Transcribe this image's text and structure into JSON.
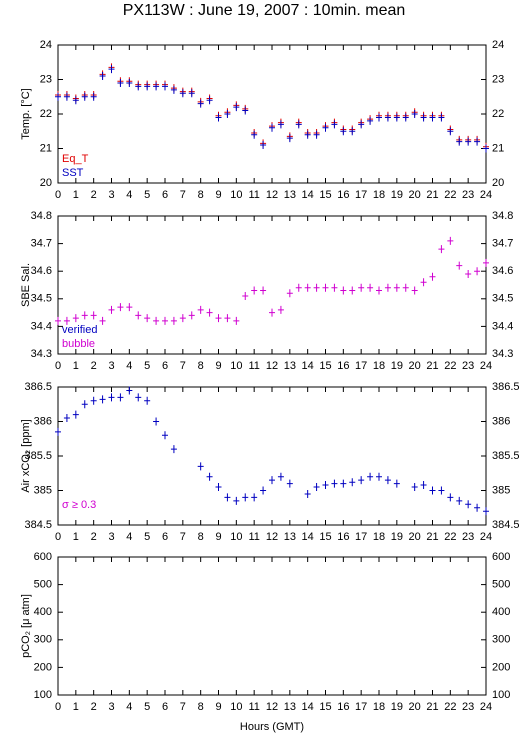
{
  "title": "PX113W : June 19, 2007 : 10min. mean",
  "chart_data": [
    {
      "type": "scatter",
      "ylabel": "Temp. [°C]",
      "xlim": [
        0,
        24
      ],
      "ylim": [
        20,
        24
      ],
      "xticks": [
        0,
        1,
        2,
        3,
        4,
        5,
        6,
        7,
        8,
        9,
        10,
        11,
        12,
        13,
        14,
        15,
        16,
        17,
        18,
        19,
        20,
        21,
        22,
        23,
        24
      ],
      "yticks": [
        20,
        21,
        22,
        23,
        24
      ],
      "x": [
        0,
        0.5,
        1,
        1.5,
        2,
        2.5,
        3,
        3.5,
        4,
        4.5,
        5,
        5.5,
        6,
        6.5,
        7,
        7.5,
        8,
        8.5,
        9,
        9.5,
        10,
        10.5,
        11,
        11.5,
        12,
        12.5,
        13,
        13.5,
        14,
        14.5,
        15,
        15.5,
        16,
        16.5,
        17,
        17.5,
        18,
        18.5,
        19,
        19.5,
        20,
        20.5,
        21,
        21.5,
        22,
        22.5,
        23,
        23.5,
        24
      ],
      "series": [
        {
          "name": "Eq_T",
          "color": "#e00000",
          "values": [
            22.55,
            22.55,
            22.45,
            22.55,
            22.55,
            23.15,
            23.35,
            22.95,
            22.95,
            22.85,
            22.85,
            22.85,
            22.85,
            22.75,
            22.65,
            22.65,
            22.35,
            22.45,
            21.95,
            22.05,
            22.25,
            22.15,
            21.45,
            21.15,
            21.65,
            21.75,
            21.35,
            21.75,
            21.45,
            21.45,
            21.65,
            21.75,
            21.55,
            21.55,
            21.75,
            21.85,
            21.95,
            21.95,
            21.95,
            21.95,
            22.05,
            21.95,
            21.95,
            21.95,
            21.55,
            21.25,
            21.25,
            21.25,
            21.05
          ]
        },
        {
          "name": "SST",
          "color": "#0000c0",
          "values": [
            22.5,
            22.5,
            22.4,
            22.5,
            22.5,
            23.1,
            23.3,
            22.9,
            22.9,
            22.8,
            22.8,
            22.8,
            22.8,
            22.7,
            22.6,
            22.6,
            22.3,
            22.4,
            21.9,
            22.0,
            22.2,
            22.1,
            21.4,
            21.1,
            21.6,
            21.7,
            21.3,
            21.7,
            21.4,
            21.4,
            21.6,
            21.7,
            21.5,
            21.5,
            21.7,
            21.8,
            21.9,
            21.9,
            21.9,
            21.9,
            22.0,
            21.9,
            21.9,
            21.9,
            21.5,
            21.2,
            21.2,
            21.2,
            21.0
          ]
        }
      ]
    },
    {
      "type": "scatter",
      "ylabel": "SBE Sal.",
      "xlim": [
        0,
        24
      ],
      "ylim": [
        34.3,
        34.8
      ],
      "xticks": [
        0,
        1,
        2,
        3,
        4,
        5,
        6,
        7,
        8,
        9,
        10,
        11,
        12,
        13,
        14,
        15,
        16,
        17,
        18,
        19,
        20,
        21,
        22,
        23,
        24
      ],
      "yticks": [
        34.3,
        34.4,
        34.5,
        34.6,
        34.7,
        34.8
      ],
      "x": [
        0,
        0.5,
        1,
        1.5,
        2,
        2.5,
        3,
        3.5,
        4,
        4.5,
        5,
        5.5,
        6,
        6.5,
        7,
        7.5,
        8,
        8.5,
        9,
        9.5,
        10,
        10.5,
        11,
        11.5,
        12,
        12.5,
        13,
        13.5,
        14,
        14.5,
        15,
        15.5,
        16,
        16.5,
        17,
        17.5,
        18,
        18.5,
        19,
        19.5,
        20,
        20.5,
        21,
        21.5,
        22,
        22.5,
        23,
        23.5,
        24
      ],
      "series": [
        {
          "name": "verified",
          "color": "#0000c0",
          "values": [
            null,
            null,
            null,
            null,
            null,
            null,
            null,
            null,
            null,
            null,
            null,
            null,
            null,
            null,
            null,
            null,
            null,
            null,
            null,
            null,
            null,
            null,
            null,
            null,
            null,
            null,
            null,
            null,
            null,
            null,
            null,
            null,
            null,
            null,
            null,
            null,
            null,
            null,
            null,
            null,
            null,
            null,
            null,
            null,
            null,
            null,
            null,
            null,
            null
          ]
        },
        {
          "name": "bubble",
          "color": "#d000d0",
          "values": [
            34.42,
            34.42,
            34.43,
            34.44,
            34.44,
            34.42,
            34.46,
            34.47,
            34.47,
            34.44,
            34.43,
            34.42,
            34.42,
            34.42,
            34.43,
            34.44,
            34.46,
            34.45,
            34.43,
            34.43,
            34.42,
            34.51,
            34.53,
            34.53,
            34.45,
            34.46,
            34.52,
            34.54,
            34.54,
            34.54,
            34.54,
            34.54,
            34.53,
            34.53,
            34.54,
            34.54,
            34.53,
            34.54,
            34.54,
            34.54,
            34.53,
            34.56,
            34.58,
            34.68,
            34.71,
            34.62,
            34.59,
            34.6,
            34.63
          ]
        }
      ]
    },
    {
      "type": "scatter",
      "ylabel": "Air xCO₂ [ppm]",
      "xlim": [
        0,
        24
      ],
      "ylim": [
        384.5,
        386.5
      ],
      "xticks": [
        0,
        1,
        2,
        3,
        4,
        5,
        6,
        7,
        8,
        9,
        10,
        11,
        12,
        13,
        14,
        15,
        16,
        17,
        18,
        19,
        20,
        21,
        22,
        23,
        24
      ],
      "yticks": [
        384.5,
        385,
        385.5,
        386,
        386.5
      ],
      "annotation": "σ ≥ 0.3",
      "annotation_color": "#d000d0",
      "x": [
        0,
        0.5,
        1,
        1.5,
        2,
        2.5,
        3,
        3.5,
        4,
        4.5,
        5,
        5.5,
        6,
        6.5,
        7,
        7.5,
        8,
        8.5,
        9,
        9.5,
        10,
        10.5,
        11,
        11.5,
        12,
        12.5,
        13,
        13.5,
        14,
        14.5,
        15,
        15.5,
        16,
        16.5,
        17,
        17.5,
        18,
        18.5,
        19,
        19.5,
        20,
        20.5,
        21,
        21.5,
        22,
        22.5,
        23,
        23.5,
        24
      ],
      "series": [
        {
          "color": "#0000c0",
          "values": [
            385.85,
            386.05,
            386.1,
            386.25,
            386.3,
            386.32,
            386.35,
            386.35,
            386.45,
            386.35,
            386.3,
            386.0,
            385.8,
            385.6,
            null,
            null,
            385.35,
            385.2,
            385.05,
            384.9,
            384.85,
            384.9,
            384.9,
            385.0,
            385.15,
            385.2,
            385.1,
            null,
            384.95,
            385.05,
            385.08,
            385.1,
            385.1,
            385.12,
            385.15,
            385.2,
            385.2,
            385.15,
            385.1,
            null,
            385.05,
            385.08,
            385.0,
            385.0,
            384.9,
            384.85,
            384.8,
            384.75,
            384.7
          ]
        }
      ]
    },
    {
      "type": "scatter",
      "ylabel": "pCO₂ [μ atm]",
      "xlabel": "Hours (GMT)",
      "xlim": [
        0,
        24
      ],
      "ylim": [
        100,
        600
      ],
      "xticks": [
        0,
        1,
        2,
        3,
        4,
        5,
        6,
        7,
        8,
        9,
        10,
        11,
        12,
        13,
        14,
        15,
        16,
        17,
        18,
        19,
        20,
        21,
        22,
        23,
        24
      ],
      "yticks": [
        100,
        200,
        300,
        400,
        500,
        600
      ],
      "x": [],
      "series": []
    }
  ]
}
